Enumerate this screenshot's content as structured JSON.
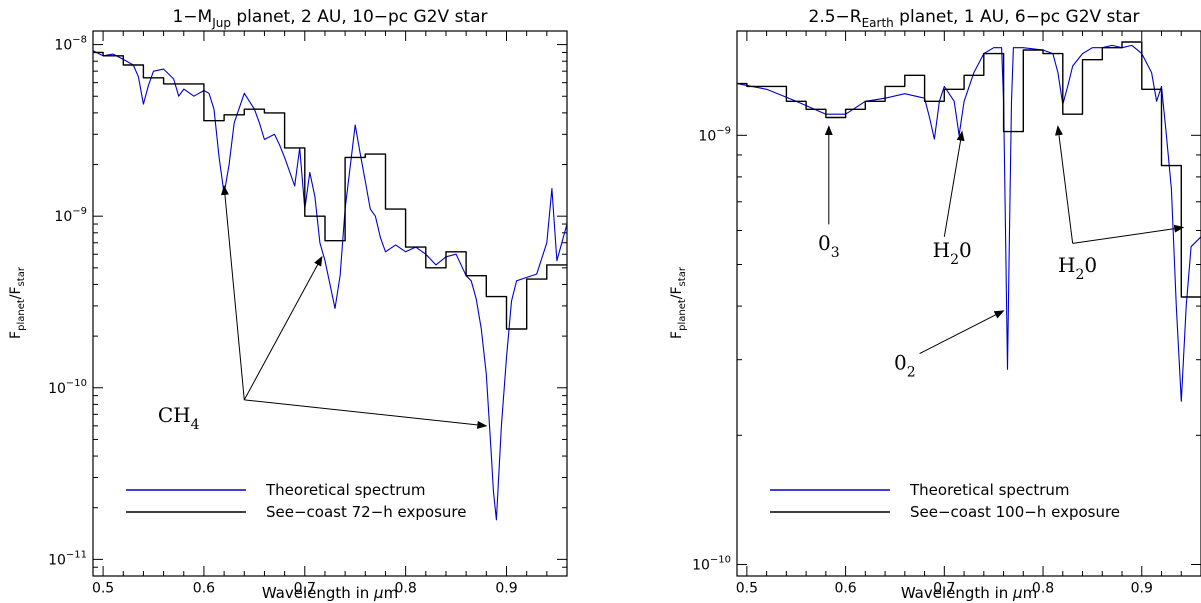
{
  "chart_data": [
    {
      "type": "line",
      "title": "1−M",
      "title_sub": "Jup",
      "title_rest": " planet, 2 AU, 10−pc G2V star",
      "ylabel": "F",
      "ylabel_sub1": "planet",
      "ylabel_mid": "/F",
      "ylabel_sub2": "star",
      "xlabel": "Wavelength in ",
      "xlabel_mu": "μ",
      "xlabel_unit": "m",
      "log_y": true,
      "xlim": [
        0.49,
        0.96
      ],
      "ylim": [
        8e-12,
        1.2e-08
      ],
      "x_ticks": [
        0.5,
        0.6,
        0.7,
        0.8,
        0.9
      ],
      "x_tick_labels": [
        "0.5",
        "0.6",
        "0.7",
        "0.8",
        "0.9"
      ],
      "y_ticks": [
        {
          "value": 1e-08,
          "base": "10",
          "exp": "−8"
        },
        {
          "value": 1e-09,
          "base": "10",
          "exp": "−9"
        },
        {
          "value": 1e-10,
          "base": "10",
          "exp": "−10"
        },
        {
          "value": 1e-11,
          "base": "10",
          "exp": "−11"
        }
      ],
      "legend": {
        "placement": "bottom-left",
        "entries": [
          {
            "label": "Theoretical spectrum",
            "color": "#0000cc"
          },
          {
            "label": "See−coast 72−h exposure",
            "color": "#000000"
          }
        ]
      },
      "series": [
        {
          "name": "Theoretical spectrum",
          "style": "line",
          "color": "#0000cc",
          "x": [
            0.49,
            0.5,
            0.51,
            0.52,
            0.53,
            0.535,
            0.54,
            0.545,
            0.55,
            0.56,
            0.57,
            0.575,
            0.58,
            0.59,
            0.6,
            0.605,
            0.61,
            0.615,
            0.62,
            0.625,
            0.63,
            0.64,
            0.65,
            0.655,
            0.66,
            0.67,
            0.675,
            0.68,
            0.69,
            0.695,
            0.7,
            0.705,
            0.71,
            0.715,
            0.72,
            0.725,
            0.73,
            0.735,
            0.74,
            0.75,
            0.755,
            0.76,
            0.765,
            0.77,
            0.775,
            0.78,
            0.79,
            0.8,
            0.81,
            0.82,
            0.83,
            0.84,
            0.85,
            0.86,
            0.865,
            0.87,
            0.875,
            0.88,
            0.885,
            0.887,
            0.89,
            0.895,
            0.9,
            0.905,
            0.91,
            0.92,
            0.93,
            0.94,
            0.945,
            0.95,
            0.96
          ],
          "y": [
            9.2e-09,
            8.6e-09,
            8.8e-09,
            8.2e-09,
            7.6e-09,
            6.5e-09,
            4.5e-09,
            5.8e-09,
            7e-09,
            7.2e-09,
            6.3e-09,
            5e-09,
            5.5e-09,
            5e-09,
            5.4e-09,
            5.2e-09,
            4.2e-09,
            2.2e-09,
            1.35e-09,
            2e-09,
            3.5e-09,
            5.2e-09,
            4.2e-09,
            3.5e-09,
            2.8e-09,
            3e-09,
            2.6e-09,
            2.2e-09,
            1.5e-09,
            2.5e-09,
            1.1e-09,
            1.8e-09,
            1.3e-09,
            7e-10,
            5.5e-10,
            4e-10,
            2.9e-10,
            4.5e-10,
            1.1e-09,
            3.4e-09,
            2.3e-09,
            1.6e-09,
            1.1e-09,
            1e-09,
            7.5e-10,
            6.2e-10,
            6.8e-10,
            6.2e-10,
            6.6e-10,
            6e-10,
            5.2e-10,
            5.8e-10,
            6e-10,
            4.5e-10,
            4.2e-10,
            3.3e-10,
            2.2e-10,
            1.2e-10,
            4e-11,
            2.5e-11,
            1.7e-11,
            6e-11,
            1.5e-10,
            3.2e-10,
            4.2e-10,
            4.4e-10,
            4.6e-10,
            7e-10,
            1.45e-09,
            5.5e-10,
            9e-10
          ]
        },
        {
          "name": "See−coast 72−h exposure",
          "style": "step",
          "color": "#000000",
          "x": [
            0.49,
            0.5,
            0.52,
            0.54,
            0.56,
            0.58,
            0.6,
            0.62,
            0.64,
            0.66,
            0.68,
            0.7,
            0.72,
            0.74,
            0.76,
            0.78,
            0.8,
            0.82,
            0.84,
            0.86,
            0.88,
            0.9,
            0.92,
            0.94,
            0.96
          ],
          "y": [
            9e-09,
            8.6e-09,
            7.6e-09,
            6.4e-09,
            5.9e-09,
            5.9e-09,
            3.6e-09,
            3.9e-09,
            4.2e-09,
            4e-09,
            2.5e-09,
            1e-09,
            7.2e-10,
            2.2e-09,
            2.3e-09,
            1.1e-09,
            6.6e-10,
            5e-10,
            6.2e-10,
            4.5e-10,
            3.4e-10,
            2.2e-10,
            4.3e-10,
            5.2e-10,
            1e-09
          ]
        }
      ],
      "annotations": [
        {
          "label": "CH",
          "sub": "4",
          "x": 0.575,
          "y": 6.3e-11
        },
        {
          "arrow": true,
          "from": [
            0.64,
            8.5e-11
          ],
          "to": [
            0.62,
            1.5e-09
          ]
        },
        {
          "arrow": true,
          "from": [
            0.64,
            8.5e-11
          ],
          "to": [
            0.717,
            5.8e-10
          ]
        },
        {
          "arrow": true,
          "from": [
            0.64,
            8.5e-11
          ],
          "to": [
            0.88,
            6e-11
          ]
        }
      ]
    },
    {
      "type": "line",
      "title": "2.5−R",
      "title_sub": "Earth",
      "title_rest": " planet, 1 AU, 6−pc G2V star",
      "ylabel": "F",
      "ylabel_sub1": "planet",
      "ylabel_mid": "/F",
      "ylabel_sub2": "star",
      "xlabel": "Wavelength in ",
      "xlabel_mu": "μ",
      "xlabel_unit": "m",
      "log_y": true,
      "xlim": [
        0.49,
        0.96
      ],
      "ylim": [
        9.4e-11,
        1.75e-09
      ],
      "x_ticks": [
        0.5,
        0.6,
        0.7,
        0.8,
        0.9
      ],
      "x_tick_labels": [
        "0.5",
        "0.6",
        "0.7",
        "0.8",
        "0.9"
      ],
      "y_ticks": [
        {
          "value": 1e-09,
          "base": "10",
          "exp": "−9"
        },
        {
          "value": 1e-10,
          "base": "10",
          "exp": "−10"
        }
      ],
      "legend": {
        "placement": "bottom-left",
        "entries": [
          {
            "label": "Theoretical spectrum",
            "color": "#0000cc"
          },
          {
            "label": "See−coast 100−h exposure",
            "color": "#000000"
          }
        ]
      },
      "series": [
        {
          "name": "Theoretical spectrum",
          "style": "line",
          "color": "#0000cc",
          "x": [
            0.49,
            0.52,
            0.55,
            0.58,
            0.6,
            0.62,
            0.64,
            0.66,
            0.68,
            0.685,
            0.69,
            0.695,
            0.7,
            0.71,
            0.715,
            0.72,
            0.73,
            0.74,
            0.75,
            0.758,
            0.76,
            0.762,
            0.764,
            0.766,
            0.768,
            0.77,
            0.78,
            0.8,
            0.81,
            0.815,
            0.82,
            0.825,
            0.83,
            0.84,
            0.85,
            0.86,
            0.87,
            0.88,
            0.89,
            0.9,
            0.91,
            0.915,
            0.92,
            0.925,
            0.93,
            0.935,
            0.94,
            0.945,
            0.95,
            0.96
          ],
          "y": [
            1.32e-09,
            1.28e-09,
            1.2e-09,
            1.12e-09,
            1.12e-09,
            1.2e-09,
            1.22e-09,
            1.25e-09,
            1.22e-09,
            1.1e-09,
            9.8e-10,
            1.2e-09,
            1.3e-09,
            1.2e-09,
            1e-09,
            1.2e-09,
            1.4e-09,
            1.55e-09,
            1.6e-09,
            1.6e-09,
            1.2e-09,
            6e-10,
            2.85e-10,
            6e-10,
            1.2e-09,
            1.6e-09,
            1.6e-09,
            1.58e-09,
            1.55e-09,
            1.4e-09,
            1.18e-09,
            1.3e-09,
            1.45e-09,
            1.55e-09,
            1.6e-09,
            1.6e-09,
            1.62e-09,
            1.6e-09,
            1.62e-09,
            1.55e-09,
            1.4e-09,
            1.2e-09,
            1.3e-09,
            1e-09,
            7.5e-10,
            4e-10,
            2.4e-10,
            4e-10,
            5.5e-10,
            5.8e-10
          ]
        },
        {
          "name": "See−coast 100−h exposure",
          "style": "step",
          "color": "#000000",
          "x": [
            0.49,
            0.5,
            0.52,
            0.54,
            0.56,
            0.58,
            0.6,
            0.62,
            0.64,
            0.66,
            0.68,
            0.7,
            0.72,
            0.74,
            0.76,
            0.78,
            0.8,
            0.82,
            0.84,
            0.86,
            0.88,
            0.9,
            0.92,
            0.94,
            0.96
          ],
          "y": [
            1.32e-09,
            1.3e-09,
            1.3e-09,
            1.2e-09,
            1.15e-09,
            1.1e-09,
            1.15e-09,
            1.2e-09,
            1.3e-09,
            1.38e-09,
            1.2e-09,
            1.28e-09,
            1.38e-09,
            1.55e-09,
            1.02e-09,
            1.58e-09,
            1.55e-09,
            1.12e-09,
            1.5e-09,
            1.6e-09,
            1.65e-09,
            1.28e-09,
            8.5e-10,
            4.2e-10,
            4.2e-10
          ]
        }
      ],
      "annotations": [
        {
          "label": "0",
          "sub": "3",
          "x": 0.583,
          "y": 5.4e-10
        },
        {
          "arrow": true,
          "from": [
            0.583,
            6.2e-10
          ],
          "to": [
            0.583,
            1.05e-09
          ]
        },
        {
          "label": "H",
          "sub": "2",
          "label_after": "0",
          "x": 0.708,
          "y": 5.2e-10
        },
        {
          "arrow": true,
          "from": [
            0.7,
            5.8e-10
          ],
          "to": [
            0.718,
            1.02e-09
          ]
        },
        {
          "label": "0",
          "sub": "2",
          "x": 0.66,
          "y": 2.85e-10
        },
        {
          "arrow": true,
          "from": [
            0.675,
            3.1e-10
          ],
          "to": [
            0.76,
            3.9e-10
          ]
        },
        {
          "label": "H",
          "sub": "2",
          "label_after": "0",
          "x": 0.835,
          "y": 4.8e-10
        },
        {
          "arrow": true,
          "from": [
            0.83,
            5.6e-10
          ],
          "to": [
            0.815,
            1.05e-09
          ]
        },
        {
          "arrow": true,
          "from": [
            0.83,
            5.6e-10
          ],
          "to": [
            0.942,
            6.1e-10
          ]
        }
      ]
    }
  ]
}
